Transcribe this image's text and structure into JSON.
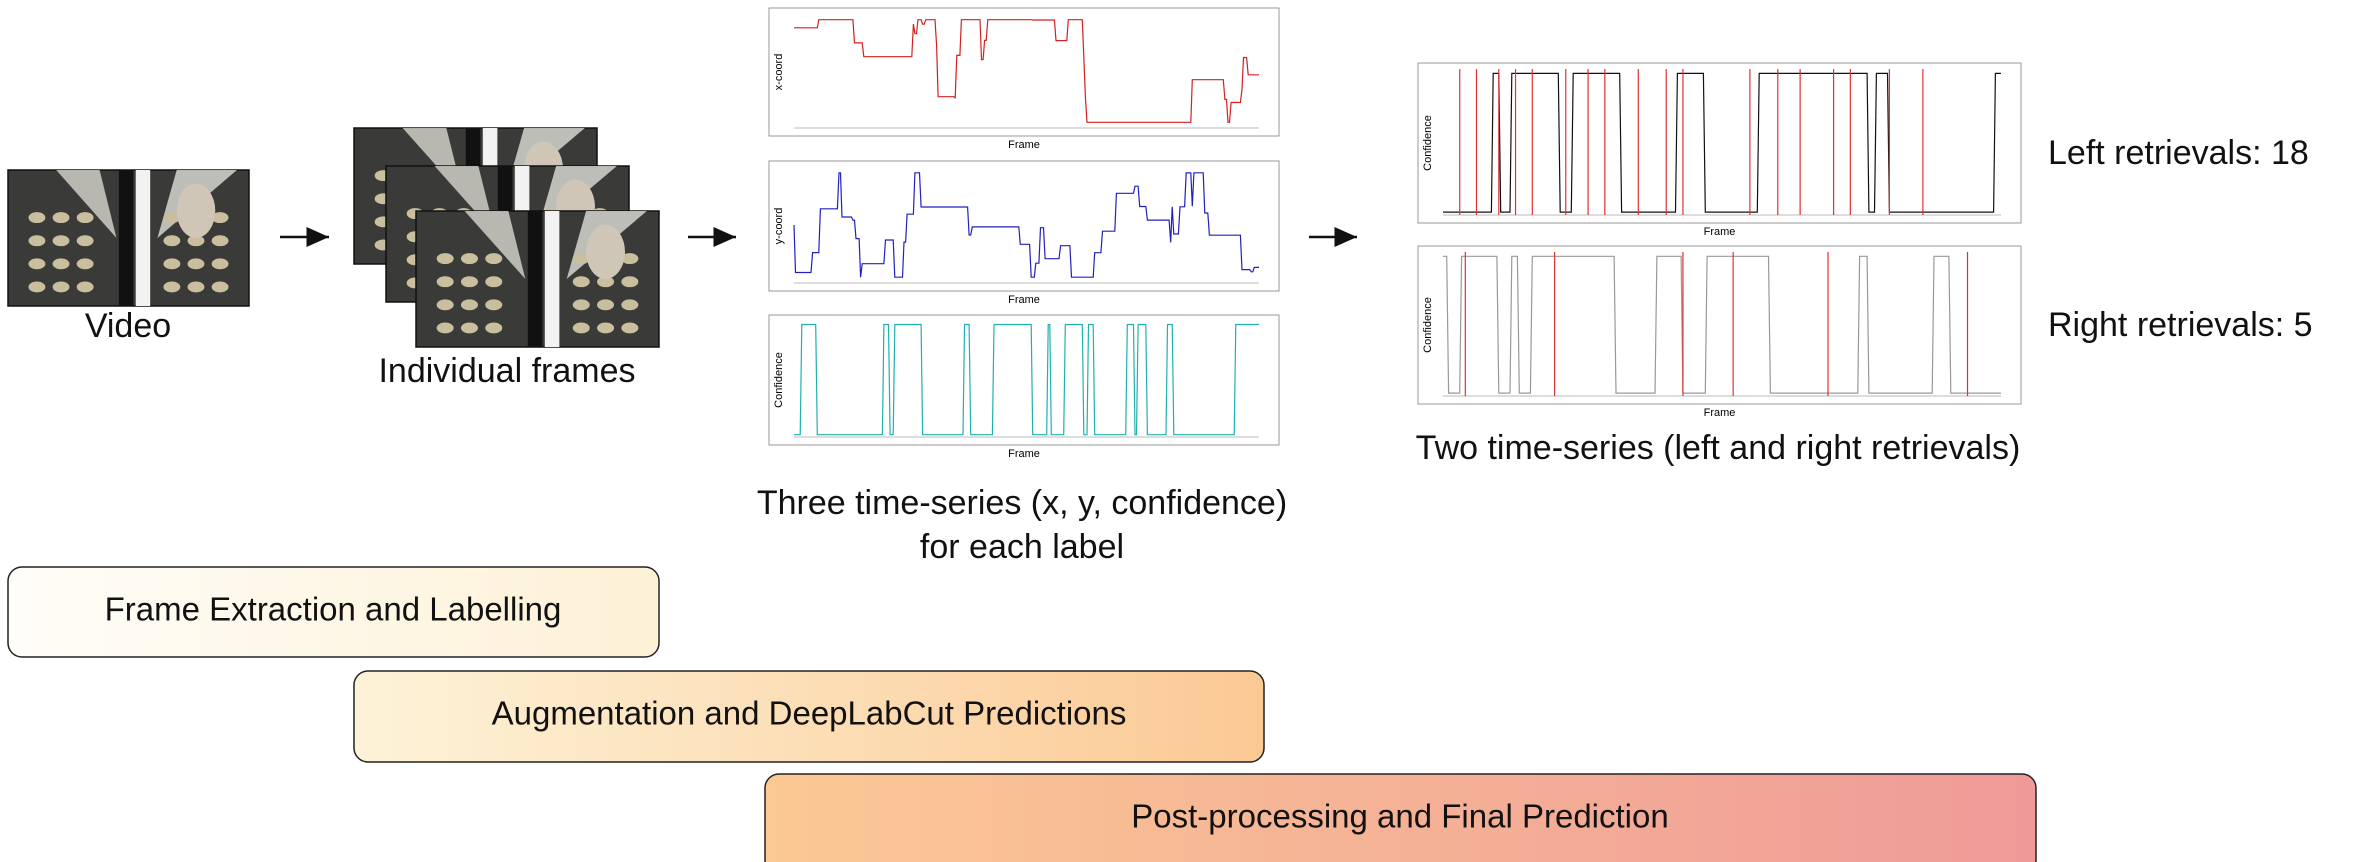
{
  "video_caption": "Video",
  "frames_caption": "Individual frames",
  "three_series": {
    "caption_lines": [
      "Three time-series (x, y, confidence)",
      "for each label"
    ],
    "plots": [
      {
        "ylabel": "x-coord",
        "xlabel": "Frame"
      },
      {
        "ylabel": "y-coord",
        "xlabel": "Frame"
      },
      {
        "ylabel": "Confidence",
        "xlabel": "Frame"
      }
    ]
  },
  "two_series": {
    "caption": "Two time-series (left and right retrievals)",
    "plots": [
      {
        "ylabel": "Confidence",
        "xlabel": "Frame"
      },
      {
        "ylabel": "Confidence",
        "xlabel": "Frame"
      }
    ]
  },
  "results": [
    "Left retrievals: 18",
    "Right retrievals: 5"
  ],
  "stages": [
    "Frame Extraction and Labelling",
    "Augmentation and DeepLabCut Predictions",
    "Post-processing and Final Prediction"
  ]
}
